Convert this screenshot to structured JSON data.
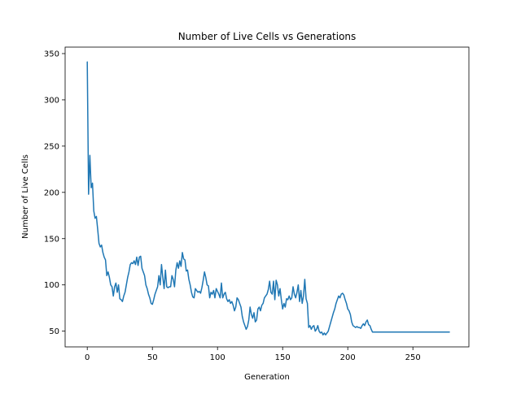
{
  "chart_data": {
    "type": "line",
    "title": "Number of Live Cells vs Generations",
    "xlabel": "Generation",
    "ylabel": "Number of Live Cells",
    "xlim": [
      -17,
      293
    ],
    "ylim": [
      33,
      357
    ],
    "xticks": [
      0,
      50,
      100,
      150,
      200,
      250
    ],
    "yticks": [
      50,
      100,
      150,
      200,
      250,
      300,
      350
    ],
    "grid": false,
    "legend": "none",
    "line_color": "#1f77b4",
    "series": [
      {
        "points": [
          [
            0,
            341
          ],
          [
            1,
            198
          ],
          [
            2,
            240
          ],
          [
            3,
            205
          ],
          [
            4,
            210
          ],
          [
            5,
            180
          ],
          [
            6,
            172
          ],
          [
            7,
            174
          ],
          [
            8,
            160
          ],
          [
            9,
            145
          ],
          [
            10,
            141
          ],
          [
            11,
            143
          ],
          [
            12,
            135
          ],
          [
            13,
            130
          ],
          [
            14,
            127
          ],
          [
            15,
            110
          ],
          [
            16,
            114
          ],
          [
            17,
            108
          ],
          [
            18,
            100
          ],
          [
            19,
            98
          ],
          [
            20,
            88
          ],
          [
            21,
            98
          ],
          [
            22,
            102
          ],
          [
            23,
            92
          ],
          [
            24,
            100
          ],
          [
            25,
            85
          ],
          [
            26,
            84
          ],
          [
            27,
            82
          ],
          [
            28,
            88
          ],
          [
            29,
            92
          ],
          [
            30,
            100
          ],
          [
            31,
            108
          ],
          [
            32,
            114
          ],
          [
            33,
            122
          ],
          [
            34,
            124
          ],
          [
            35,
            123
          ],
          [
            36,
            126
          ],
          [
            37,
            122
          ],
          [
            38,
            130
          ],
          [
            39,
            121
          ],
          [
            40,
            130
          ],
          [
            41,
            131
          ],
          [
            42,
            118
          ],
          [
            43,
            114
          ],
          [
            44,
            110
          ],
          [
            45,
            100
          ],
          [
            46,
            96
          ],
          [
            47,
            90
          ],
          [
            48,
            86
          ],
          [
            49,
            80
          ],
          [
            50,
            79
          ],
          [
            51,
            84
          ],
          [
            52,
            90
          ],
          [
            53,
            94
          ],
          [
            54,
            98
          ],
          [
            55,
            110
          ],
          [
            56,
            100
          ],
          [
            57,
            122
          ],
          [
            58,
            108
          ],
          [
            59,
            96
          ],
          [
            60,
            116
          ],
          [
            61,
            98
          ],
          [
            62,
            97
          ],
          [
            63,
            98
          ],
          [
            64,
            98
          ],
          [
            65,
            110
          ],
          [
            66,
            106
          ],
          [
            67,
            98
          ],
          [
            68,
            116
          ],
          [
            69,
            124
          ],
          [
            70,
            118
          ],
          [
            71,
            126
          ],
          [
            72,
            120
          ],
          [
            73,
            135
          ],
          [
            74,
            128
          ],
          [
            75,
            127
          ],
          [
            76,
            115
          ],
          [
            77,
            116
          ],
          [
            78,
            106
          ],
          [
            79,
            100
          ],
          [
            80,
            92
          ],
          [
            81,
            87
          ],
          [
            82,
            86
          ],
          [
            83,
            96
          ],
          [
            84,
            94
          ],
          [
            85,
            92
          ],
          [
            86,
            93
          ],
          [
            87,
            91
          ],
          [
            88,
            97
          ],
          [
            89,
            105
          ],
          [
            90,
            114
          ],
          [
            91,
            108
          ],
          [
            92,
            100
          ],
          [
            93,
            99
          ],
          [
            94,
            86
          ],
          [
            95,
            92
          ],
          [
            96,
            90
          ],
          [
            97,
            94
          ],
          [
            98,
            86
          ],
          [
            99,
            96
          ],
          [
            100,
            93
          ],
          [
            101,
            90
          ],
          [
            102,
            86
          ],
          [
            103,
            102
          ],
          [
            104,
            86
          ],
          [
            105,
            90
          ],
          [
            106,
            92
          ],
          [
            107,
            85
          ],
          [
            108,
            82
          ],
          [
            109,
            84
          ],
          [
            110,
            80
          ],
          [
            111,
            82
          ],
          [
            112,
            78
          ],
          [
            113,
            72
          ],
          [
            114,
            76
          ],
          [
            115,
            86
          ],
          [
            116,
            84
          ],
          [
            117,
            80
          ],
          [
            118,
            76
          ],
          [
            119,
            66
          ],
          [
            120,
            60
          ],
          [
            121,
            56
          ],
          [
            122,
            52
          ],
          [
            123,
            55
          ],
          [
            124,
            62
          ],
          [
            125,
            76
          ],
          [
            126,
            68
          ],
          [
            127,
            64
          ],
          [
            128,
            70
          ],
          [
            129,
            60
          ],
          [
            130,
            62
          ],
          [
            131,
            74
          ],
          [
            132,
            76
          ],
          [
            133,
            72
          ],
          [
            134,
            78
          ],
          [
            135,
            80
          ],
          [
            136,
            86
          ],
          [
            137,
            88
          ],
          [
            138,
            90
          ],
          [
            139,
            95
          ],
          [
            140,
            104
          ],
          [
            141,
            92
          ],
          [
            142,
            90
          ],
          [
            143,
            104
          ],
          [
            144,
            84
          ],
          [
            145,
            105
          ],
          [
            146,
            100
          ],
          [
            147,
            88
          ],
          [
            148,
            96
          ],
          [
            149,
            84
          ],
          [
            150,
            74
          ],
          [
            151,
            80
          ],
          [
            152,
            76
          ],
          [
            153,
            85
          ],
          [
            154,
            84
          ],
          [
            155,
            88
          ],
          [
            156,
            84
          ],
          [
            157,
            86
          ],
          [
            158,
            98
          ],
          [
            159,
            90
          ],
          [
            160,
            86
          ],
          [
            161,
            92
          ],
          [
            162,
            100
          ],
          [
            163,
            82
          ],
          [
            164,
            94
          ],
          [
            165,
            80
          ],
          [
            166,
            88
          ],
          [
            167,
            106
          ],
          [
            168,
            85
          ],
          [
            169,
            80
          ],
          [
            170,
            54
          ],
          [
            171,
            56
          ],
          [
            172,
            52
          ],
          [
            173,
            55
          ],
          [
            174,
            56
          ],
          [
            175,
            50
          ],
          [
            176,
            52
          ],
          [
            177,
            56
          ],
          [
            178,
            50
          ],
          [
            179,
            48
          ],
          [
            180,
            49
          ],
          [
            181,
            46
          ],
          [
            182,
            48
          ],
          [
            183,
            46
          ],
          [
            184,
            48
          ],
          [
            185,
            50
          ],
          [
            186,
            55
          ],
          [
            187,
            60
          ],
          [
            188,
            65
          ],
          [
            189,
            70
          ],
          [
            190,
            74
          ],
          [
            191,
            80
          ],
          [
            192,
            84
          ],
          [
            193,
            88
          ],
          [
            194,
            86
          ],
          [
            195,
            90
          ],
          [
            196,
            91
          ],
          [
            197,
            89
          ],
          [
            198,
            84
          ],
          [
            199,
            80
          ],
          [
            200,
            74
          ],
          [
            201,
            72
          ],
          [
            202,
            68
          ],
          [
            203,
            60
          ],
          [
            204,
            56
          ],
          [
            205,
            55
          ],
          [
            206,
            54
          ],
          [
            207,
            55
          ],
          [
            208,
            54
          ],
          [
            209,
            54
          ],
          [
            210,
            53
          ],
          [
            211,
            56
          ],
          [
            212,
            58
          ],
          [
            213,
            56
          ],
          [
            214,
            60
          ],
          [
            215,
            62
          ],
          [
            216,
            57
          ],
          [
            217,
            56
          ],
          [
            218,
            52
          ],
          [
            219,
            49
          ],
          [
            220,
            49
          ],
          [
            240,
            49
          ],
          [
            260,
            49
          ],
          [
            278,
            49
          ]
        ]
      }
    ]
  }
}
